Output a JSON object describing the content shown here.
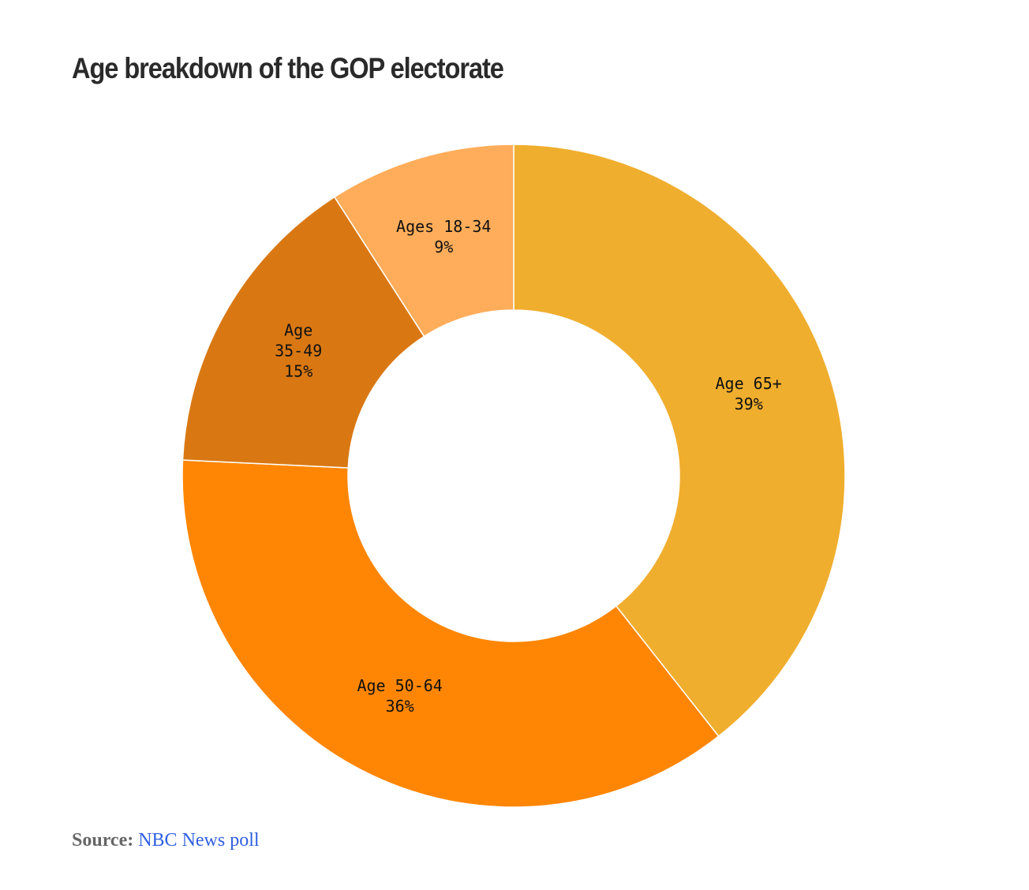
{
  "chart_data": {
    "type": "pie",
    "variant": "donut",
    "title": "Age breakdown of the GOP electorate",
    "slices": [
      {
        "name": "Age 65+",
        "lines": [
          "Age 65+"
        ],
        "value": 39,
        "value_label": "39%",
        "color": "#f0ae2e"
      },
      {
        "name": "Age 50-64",
        "lines": [
          "Age 50-64"
        ],
        "value": 36,
        "value_label": "36%",
        "color": "#ff8604"
      },
      {
        "name": "Age 35-49",
        "lines": [
          "Age",
          "35-49"
        ],
        "value": 15,
        "value_label": "15%",
        "color": "#d97813"
      },
      {
        "name": "Ages 18-34",
        "lines": [
          "Ages 18-34"
        ],
        "value": 9,
        "value_label": "9%",
        "color": "#ffad5a"
      }
    ],
    "start": "top",
    "direction": "clockwise"
  },
  "source": {
    "label": "Source:",
    "link_text": "NBC News poll"
  }
}
